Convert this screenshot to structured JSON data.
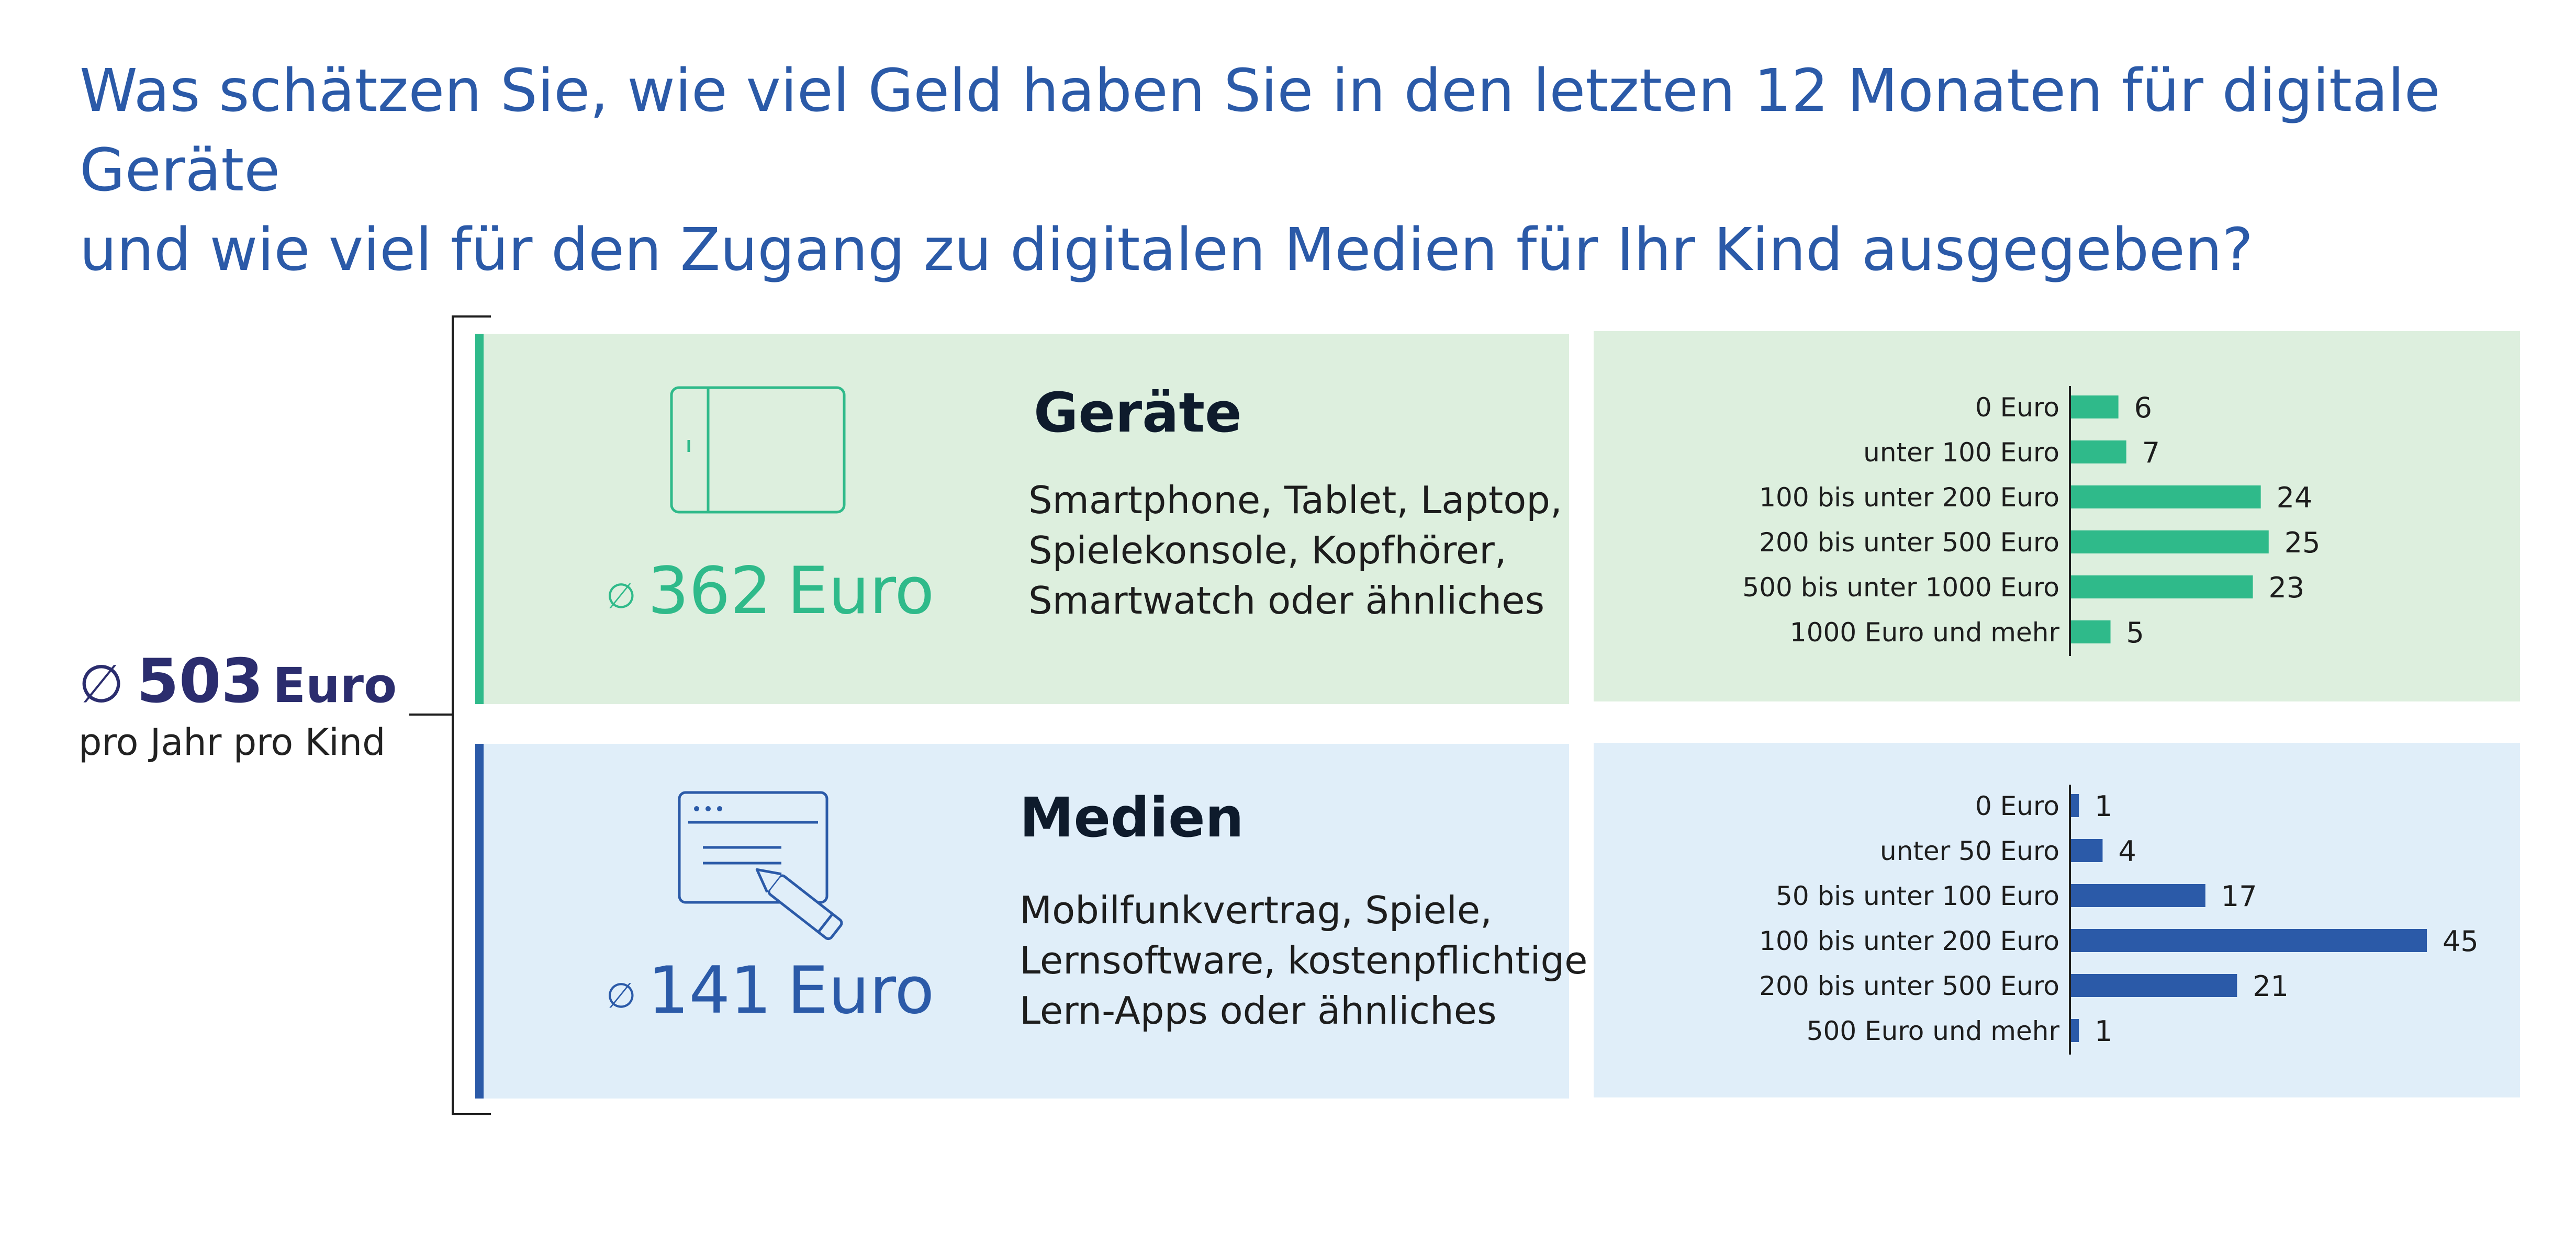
{
  "title_lines": [
    "Was schätzen Sie, wie viel Geld haben Sie in den letzten 12 Monaten für digitale Geräte",
    "und wie viel für den Zugang zu digitalen Medien für Ihr Kind ausgegeben?"
  ],
  "summary": {
    "symbol": "∅",
    "value": "503",
    "unit": "Euro",
    "subtitle": "pro Jahr pro Kind"
  },
  "devices": {
    "title": "Geräte",
    "avg_symbol": "∅",
    "avg_value": "362",
    "avg_unit": "Euro",
    "desc_lines": [
      "Smartphone, Tablet, Laptop,",
      "Spielekonsole, Kopfhörer,",
      "Smartwatch oder ähnliches"
    ],
    "icon": "tablet-icon",
    "color": "#2fba8a"
  },
  "media": {
    "title": "Medien",
    "avg_symbol": "∅",
    "avg_value": "141",
    "avg_unit": "Euro",
    "desc_lines": [
      "Mobilfunkvertrag, Spiele,",
      "Lernsoftware, kostenpflichtige",
      "Lern-Apps oder ähnliches"
    ],
    "icon": "browser-pencil-icon",
    "color": "#2b5aa8"
  },
  "chart_data": [
    {
      "type": "bar",
      "orientation": "horizontal",
      "categories": [
        "0 Euro",
        "unter 100 Euro",
        "100 bis unter 200 Euro",
        "200 bis unter 500 Euro",
        "500 bis unter 1000 Euro",
        "1000 Euro und mehr"
      ],
      "values": [
        6,
        7,
        24,
        25,
        23,
        5
      ],
      "xlim": [
        0,
        45
      ],
      "color": "#2fba8a"
    },
    {
      "type": "bar",
      "orientation": "horizontal",
      "categories": [
        "0 Euro",
        "unter 50 Euro",
        "50 bis unter 100 Euro",
        "100 bis unter 200 Euro",
        "200 bis unter 500 Euro",
        "500 Euro und mehr"
      ],
      "values": [
        1,
        4,
        17,
        45,
        21,
        1
      ],
      "xlim": [
        0,
        45
      ],
      "color": "#2b5aa8"
    }
  ]
}
